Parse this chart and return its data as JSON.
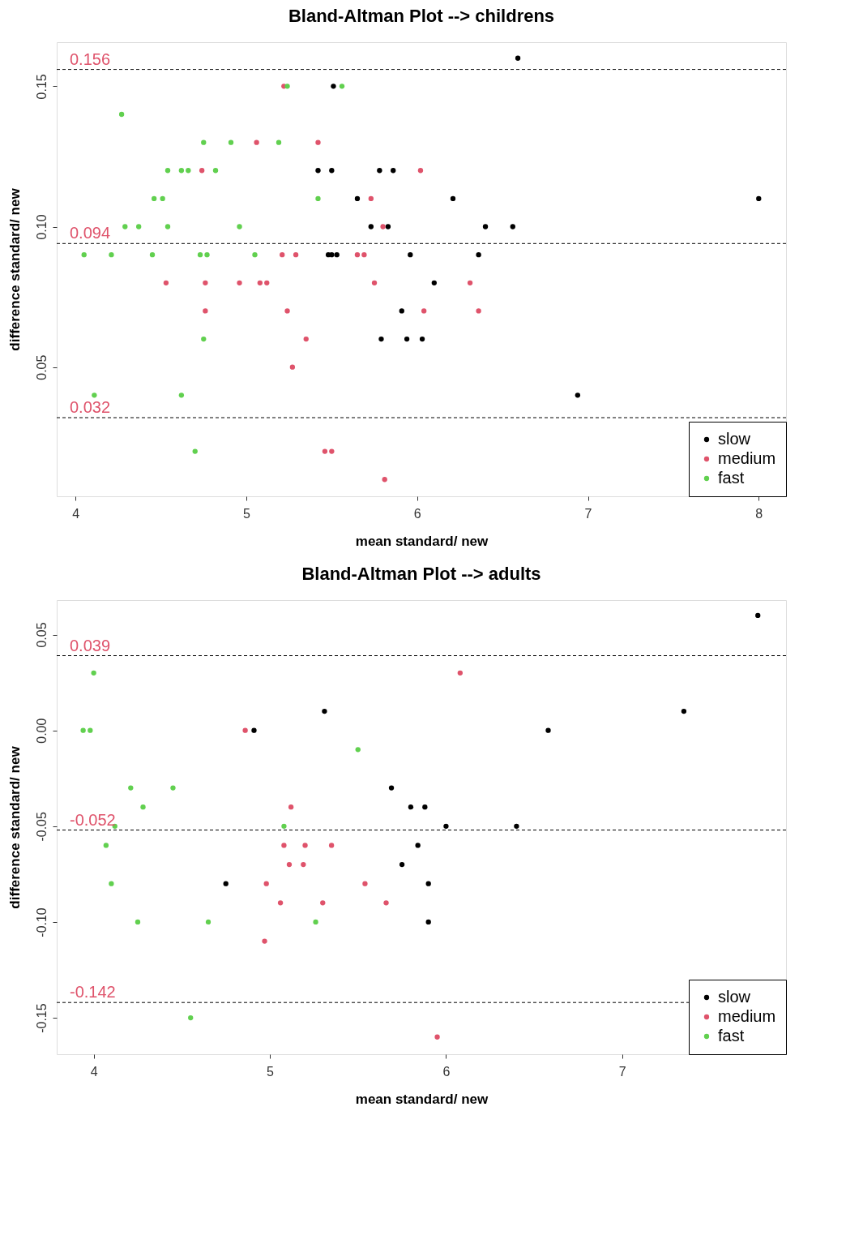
{
  "chart_data": [
    {
      "type": "scatter",
      "title": "Bland-Altman Plot --> childrens",
      "xlabel": "mean standard/ new",
      "ylabel": "difference standard/ new",
      "marker": "circle",
      "legend": "bottom right",
      "grid": false,
      "xlim": [
        3.89,
        8.16
      ],
      "ylim": [
        0.004,
        0.1657
      ],
      "xticks": [
        4,
        5,
        6,
        7,
        8
      ],
      "yticks": [
        0.05,
        {
          "value": 0.1,
          "label": "0.10"
        },
        0.15
      ],
      "series": [
        {
          "name": "slow",
          "color": "#000000",
          "x": [
            6.59,
            5.51,
            5.42,
            5.5,
            5.78,
            5.86,
            5.65,
            6.21,
            8.0,
            5.73,
            5.83,
            6.4,
            6.56,
            5.48,
            5.5,
            5.53,
            5.96,
            6.36,
            6.1,
            5.91,
            5.79,
            5.94,
            6.03,
            6.94
          ],
          "values": [
            0.16,
            0.15,
            0.12,
            0.12,
            0.12,
            0.12,
            0.11,
            0.11,
            0.11,
            0.1,
            0.1,
            0.1,
            0.1,
            0.09,
            0.09,
            0.09,
            0.09,
            0.09,
            0.08,
            0.07,
            0.06,
            0.06,
            0.06,
            0.04
          ]
        },
        {
          "name": "medium",
          "color": "#df536b",
          "x": [
            5.22,
            5.06,
            5.42,
            4.74,
            6.02,
            5.73,
            5.8,
            5.21,
            5.29,
            5.65,
            5.69,
            4.53,
            4.76,
            4.96,
            5.08,
            5.12,
            5.75,
            6.31,
            4.76,
            5.24,
            6.04,
            6.36,
            5.35,
            5.27,
            5.46,
            5.5,
            5.81
          ],
          "values": [
            0.15,
            0.13,
            0.13,
            0.12,
            0.12,
            0.11,
            0.1,
            0.09,
            0.09,
            0.09,
            0.09,
            0.08,
            0.08,
            0.08,
            0.08,
            0.08,
            0.08,
            0.08,
            0.07,
            0.07,
            0.07,
            0.07,
            0.06,
            0.05,
            0.02,
            0.02,
            0.01
          ]
        },
        {
          "name": "fast",
          "color": "#61d04f",
          "x": [
            5.24,
            5.56,
            4.27,
            4.75,
            4.91,
            5.19,
            4.54,
            4.62,
            4.66,
            4.82,
            4.46,
            4.51,
            5.42,
            4.29,
            4.37,
            4.54,
            4.96,
            4.05,
            4.21,
            4.45,
            4.73,
            4.77,
            5.05,
            4.75,
            4.11,
            4.62,
            4.7
          ],
          "values": [
            0.15,
            0.15,
            0.14,
            0.13,
            0.13,
            0.13,
            0.12,
            0.12,
            0.12,
            0.12,
            0.11,
            0.11,
            0.11,
            0.1,
            0.1,
            0.1,
            0.1,
            0.09,
            0.09,
            0.09,
            0.09,
            0.09,
            0.09,
            0.06,
            0.04,
            0.04,
            0.02
          ]
        }
      ],
      "ref_lines": [
        {
          "axis": "y",
          "value": 0.156,
          "label": "0.156",
          "color": "#000000",
          "line_style": "dashed"
        },
        {
          "axis": "y",
          "value": 0.094,
          "label": "0.094",
          "color": "#000000",
          "line_style": "dashed"
        },
        {
          "axis": "y",
          "value": 0.032,
          "label": "0.032",
          "color": "#000000",
          "line_style": "dashed"
        }
      ]
    },
    {
      "type": "scatter",
      "title": "Bland-Altman Plot --> adults",
      "xlabel": "mean standard/ new",
      "ylabel": "difference standard/ new",
      "marker": "circle",
      "legend": "bottom right",
      "grid": false,
      "xlim": [
        3.79,
        7.93
      ],
      "ylim": [
        -0.169,
        0.068
      ],
      "xticks": [
        4,
        5,
        6,
        7
      ],
      "yticks": [
        {
          "value": -0.15,
          "label": "-0.15"
        },
        {
          "value": -0.1,
          "label": "-0.10"
        },
        -0.05,
        {
          "value": 0,
          "label": "0.00"
        },
        0.05
      ],
      "series": [
        {
          "name": "slow",
          "color": "#000000",
          "x": [
            7.77,
            5.31,
            7.35,
            4.91,
            6.58,
            5.69,
            5.8,
            5.88,
            6.0,
            6.4,
            5.84,
            5.75,
            4.75,
            5.9,
            5.9
          ],
          "values": [
            0.06,
            0.01,
            0.01,
            0.0,
            0.0,
            -0.03,
            -0.04,
            -0.04,
            -0.05,
            -0.05,
            -0.06,
            -0.07,
            -0.08,
            -0.08,
            -0.1
          ]
        },
        {
          "name": "medium",
          "color": "#df536b",
          "x": [
            6.08,
            4.86,
            5.12,
            5.08,
            5.2,
            5.35,
            5.11,
            5.19,
            4.98,
            5.54,
            5.06,
            5.3,
            5.66,
            4.97,
            5.95
          ],
          "values": [
            0.03,
            0.0,
            -0.04,
            -0.06,
            -0.06,
            -0.06,
            -0.07,
            -0.07,
            -0.08,
            -0.08,
            -0.09,
            -0.09,
            -0.09,
            -0.11,
            -0.16
          ]
        },
        {
          "name": "fast",
          "color": "#61d04f",
          "x": [
            4.0,
            3.94,
            3.98,
            5.5,
            4.21,
            4.45,
            4.28,
            4.12,
            5.08,
            4.07,
            4.1,
            4.25,
            4.65,
            5.26,
            4.55
          ],
          "values": [
            0.03,
            0.0,
            0.0,
            -0.01,
            -0.03,
            -0.03,
            -0.04,
            -0.05,
            -0.05,
            -0.06,
            -0.08,
            -0.1,
            -0.1,
            -0.1,
            -0.15
          ]
        }
      ],
      "ref_lines": [
        {
          "axis": "y",
          "value": 0.039,
          "label": "0.039",
          "color": "#000000",
          "line_style": "dashed"
        },
        {
          "axis": "y",
          "value": -0.052,
          "label": "-0.052",
          "color": "#000000",
          "line_style": "dashed"
        },
        {
          "axis": "y",
          "value": -0.142,
          "label": "-0.142",
          "color": "#000000",
          "line_style": "dashed"
        }
      ]
    }
  ]
}
